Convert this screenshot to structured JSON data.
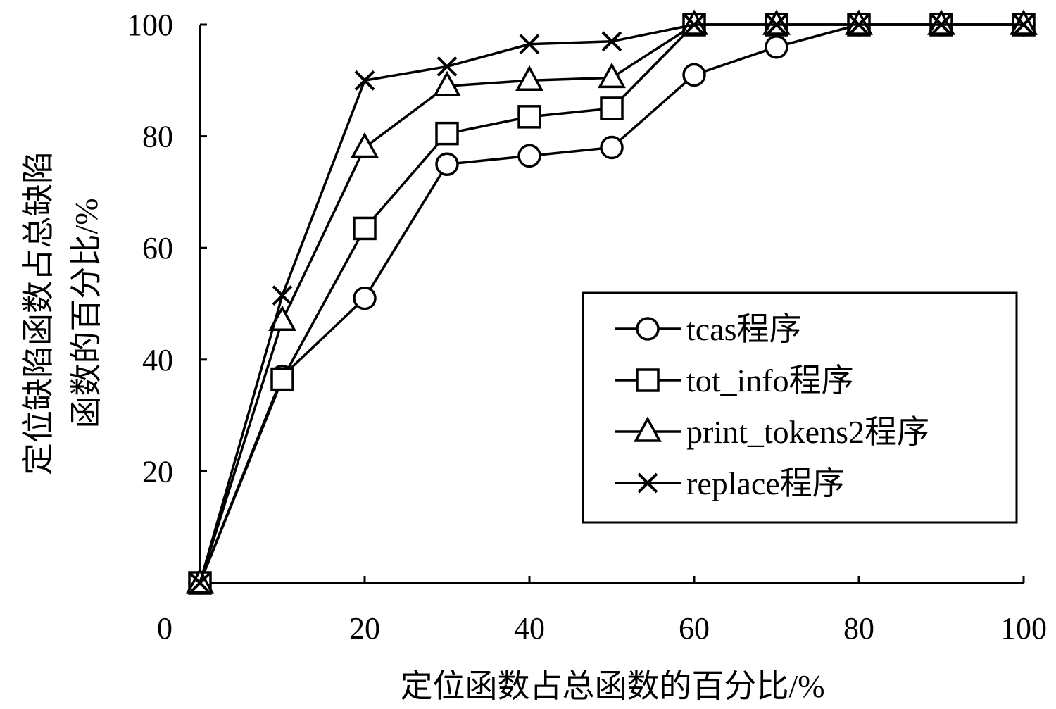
{
  "chart_data": {
    "type": "line",
    "title": "",
    "xlabel": "定位函数占总函数的百分比/%",
    "ylabel_lines": [
      "定位缺陷函数占总缺陷",
      "函数的百分比/%"
    ],
    "x_ticks": [
      "0",
      "20",
      "40",
      "60",
      "80",
      "100"
    ],
    "y_ticks": [
      "20",
      "40",
      "60",
      "80",
      "100"
    ],
    "xlim": [
      0,
      100
    ],
    "ylim": [
      0,
      100
    ],
    "grid": false,
    "legend_position": "center-right",
    "series": [
      {
        "name": "tcas程序",
        "marker": "circle",
        "x": [
          0,
          10,
          20,
          30,
          40,
          50,
          60,
          70,
          80,
          90,
          100
        ],
        "y": [
          0,
          37,
          51,
          75,
          76.5,
          78,
          91,
          96,
          100,
          100,
          100
        ]
      },
      {
        "name": "tot_info程序",
        "marker": "square",
        "x": [
          0,
          10,
          20,
          30,
          40,
          50,
          60,
          70,
          80,
          90,
          100
        ],
        "y": [
          0,
          36.5,
          63.5,
          80.5,
          83.5,
          85,
          100,
          100,
          100,
          100,
          100
        ]
      },
      {
        "name": "print_tokens2程序",
        "marker": "triangle",
        "x": [
          0,
          10,
          20,
          30,
          40,
          50,
          60,
          70,
          80,
          90,
          100
        ],
        "y": [
          0,
          47,
          78,
          89,
          90,
          90.5,
          100,
          100,
          100,
          100,
          100
        ]
      },
      {
        "name": "replace程序",
        "marker": "x",
        "x": [
          0,
          10,
          20,
          30,
          40,
          50,
          60,
          70,
          80,
          90,
          100
        ],
        "y": [
          0,
          51.5,
          90,
          92.5,
          96.5,
          97,
          100,
          100,
          100,
          100,
          100
        ]
      }
    ]
  }
}
